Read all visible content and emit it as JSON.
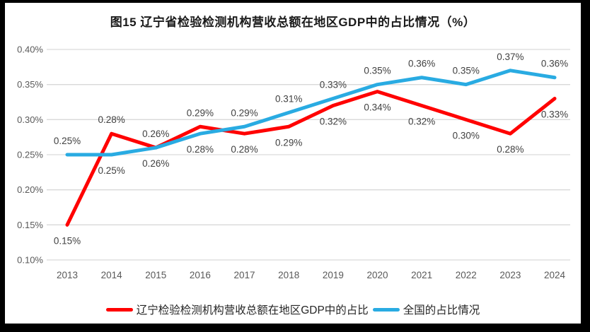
{
  "colors": {
    "frame_border": "#000000",
    "background": "#ffffff",
    "gridline": "#d9d9d9",
    "axis_tick_text": "#595959",
    "data_label_text": "#404040",
    "series_liaoning": "#ff0000",
    "series_national": "#29abe2"
  },
  "chart_data": {
    "type": "line",
    "title": "图15 辽宁省检验检测机构营收总额在地区GDP中的占比情况（%）",
    "categories": [
      "2013",
      "2014",
      "2015",
      "2016",
      "2017",
      "2018",
      "2019",
      "2020",
      "2021",
      "2022",
      "2023",
      "2024"
    ],
    "series": [
      {
        "name": "辽宁检验检测机构营收总额在地区GDP中的占比",
        "color": "#ff0000",
        "values": [
          0.15,
          0.28,
          0.26,
          0.29,
          0.28,
          0.29,
          0.32,
          0.34,
          0.32,
          0.3,
          0.28,
          0.33
        ],
        "labels": [
          "0.15%",
          "0.28%",
          "0.26%",
          "0.29%",
          "0.28%",
          "0.29%",
          "0.32%",
          "0.34%",
          "0.32%",
          "0.30%",
          "0.28%",
          "0.33%"
        ]
      },
      {
        "name": "全国的占比情况",
        "color": "#29abe2",
        "values": [
          0.25,
          0.25,
          0.26,
          0.28,
          0.29,
          0.31,
          0.33,
          0.35,
          0.36,
          0.35,
          0.37,
          0.36
        ],
        "labels": [
          "0.25%",
          "0.25%",
          "0.26%",
          "0.28%",
          "0.29%",
          "0.31%",
          "0.33%",
          "0.35%",
          "0.36%",
          "0.35%",
          "0.37%",
          "0.36%"
        ]
      }
    ],
    "ylim": [
      0.1,
      0.4
    ],
    "ytick_step": 0.05,
    "yticks": [
      "0.40%",
      "0.35%",
      "0.30%",
      "0.25%",
      "0.20%",
      "0.15%",
      "0.10%"
    ],
    "grid": true,
    "legend_position": "bottom",
    "data_labels_shown": true
  }
}
